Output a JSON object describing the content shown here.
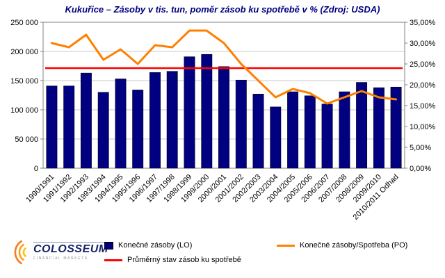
{
  "title": "Kukuřice – Zásoby v tis. tun, poměr zásob ku spotřebě v % (Zdroj: USDA)",
  "colors": {
    "bar": "#000080",
    "line": "#FF8000",
    "avg_line": "#FF0000",
    "title": "#000080",
    "grid": "#C9C9C9",
    "plot_border": "#808080"
  },
  "chart_data": {
    "type": "bar",
    "title": "Kukuřice – Zásoby v tis. tun, poměr zásob ku spotřebě v % (Zdroj: USDA)",
    "categories": [
      "1990/1991",
      "1991/1992",
      "1992/1993",
      "1993/1994",
      "1994/1995",
      "1995/1996",
      "1996/1997",
      "1997/1998",
      "1998/1999",
      "1999/2000",
      "2000/2001",
      "2001/2002",
      "2002/2003",
      "2003/2004",
      "2004/2005",
      "2005/2006",
      "2006/2007",
      "2007/2008",
      "2008/2009",
      "2009/2010",
      "2010/2011 Odhad"
    ],
    "series": [
      {
        "name": "Konečné zásoby (LO)",
        "type": "bar",
        "axis": "left",
        "values": [
          141000,
          141000,
          163000,
          130000,
          153000,
          134000,
          164000,
          166000,
          191000,
          195000,
          174000,
          151000,
          127000,
          105000,
          131000,
          124000,
          110000,
          131000,
          147000,
          138000,
          139000
        ]
      },
      {
        "name": "Konečné zásoby/Spotřeba (PO)",
        "type": "line",
        "axis": "right",
        "values": [
          30,
          29,
          32,
          26,
          28.5,
          25,
          29.5,
          29,
          33,
          33,
          30,
          25,
          21,
          17,
          19,
          18,
          15.5,
          17,
          18.5,
          17,
          16.5
        ]
      },
      {
        "name": "Průměrný stav zásob ku spotřebě",
        "type": "hline",
        "axis": "right",
        "value": 24
      }
    ],
    "left_axis": {
      "min": 0,
      "max": 250000,
      "step": 50000,
      "tick_labels": [
        "0",
        "50 000",
        "100 000",
        "150 000",
        "200 000",
        "250 000"
      ]
    },
    "right_axis": {
      "min": 0,
      "max": 35,
      "step": 5,
      "tick_labels": [
        "0,00%",
        "5,00%",
        "10,00%",
        "15,00%",
        "20,00%",
        "25,00%",
        "30,00%",
        "35,00%"
      ]
    },
    "grid": true,
    "legend_position": "bottom"
  },
  "legend": {
    "items": [
      "Konečné zásoby (LO)",
      "Konečné zásoby/Spotřeba (PO)",
      "Průměrný stav zásob ku spotřebě"
    ]
  },
  "logo": {
    "name": "COLOSSEUM",
    "subtitle": "FINANCIAL MARKETS"
  }
}
